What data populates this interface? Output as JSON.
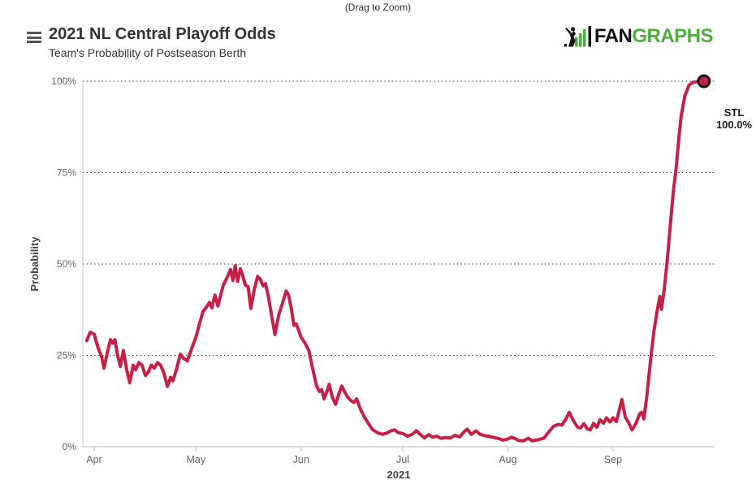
{
  "page": {
    "drag_hint": "(Drag to Zoom)"
  },
  "header": {
    "title": "2021 NL Central Playoff Odds",
    "subtitle": "Team's Probability of Postseason Berth",
    "logo": {
      "fan": "FAN",
      "graphs": "GRAPHS",
      "green": "#4DAE3C",
      "black": "#111111"
    }
  },
  "chart_data": {
    "type": "line",
    "title": "2021 NL Central Playoff Odds",
    "subtitle": "Team's Probability of Postseason Berth",
    "xlabel": "2021",
    "ylabel": "Probability",
    "ylim": [
      0,
      100
    ],
    "grid": "horizontal dotted lines at 25%, 50%, 75%, 100%",
    "legend_position": "none",
    "y_ticks": [
      {
        "label": "0%",
        "value": 0
      },
      {
        "label": "25%",
        "value": 25
      },
      {
        "label": "50%",
        "value": 50
      },
      {
        "label": "75%",
        "value": 75
      },
      {
        "label": "100%",
        "value": 100
      }
    ],
    "x_ticks": [
      {
        "label": "Apr",
        "day": 0
      },
      {
        "label": "May",
        "day": 30
      },
      {
        "label": "Jun",
        "day": 61
      },
      {
        "label": "Jul",
        "day": 91
      },
      {
        "label": "Aug",
        "day": 122
      },
      {
        "label": "Sep",
        "day": 153
      }
    ],
    "x_unit": "days since Apr 1, 2021",
    "series": [
      {
        "name": "STL",
        "color": "#C62046",
        "marker_stroke": "#151515",
        "end_label": {
          "team": "STL",
          "value": "100.0%"
        },
        "points": [
          [
            -2.2,
            29
          ],
          [
            -1.2,
            31.3
          ],
          [
            0,
            30.8
          ],
          [
            1,
            27.5
          ],
          [
            2.2,
            24.5
          ],
          [
            2.9,
            21.5
          ],
          [
            3.8,
            25.5
          ],
          [
            4.8,
            29.3
          ],
          [
            5.5,
            28.3
          ],
          [
            6.1,
            29.3
          ],
          [
            6.9,
            25
          ],
          [
            7.7,
            22
          ],
          [
            8.6,
            26.3
          ],
          [
            9.6,
            21
          ],
          [
            10.5,
            17.5
          ],
          [
            11.5,
            22.3
          ],
          [
            12.2,
            21
          ],
          [
            13.2,
            23
          ],
          [
            14.1,
            22.3
          ],
          [
            15.1,
            19.5
          ],
          [
            16,
            20.5
          ],
          [
            16.8,
            22.3
          ],
          [
            17.7,
            21.5
          ],
          [
            18.7,
            23
          ],
          [
            19.6,
            22.3
          ],
          [
            20.6,
            20
          ],
          [
            21.6,
            16.5
          ],
          [
            22.5,
            19
          ],
          [
            23.2,
            18
          ],
          [
            24.2,
            21
          ],
          [
            25.4,
            25.3
          ],
          [
            26.3,
            24.2
          ],
          [
            27.5,
            23.5
          ],
          [
            29,
            27.5
          ],
          [
            30,
            30
          ],
          [
            31,
            33.5
          ],
          [
            32.1,
            37
          ],
          [
            33.3,
            38.5
          ],
          [
            34,
            39.5
          ],
          [
            34.7,
            38
          ],
          [
            35.6,
            41.5
          ],
          [
            36.5,
            38.5
          ],
          [
            38,
            44
          ],
          [
            39.3,
            46.5
          ],
          [
            40.2,
            48.5
          ],
          [
            40.9,
            45.5
          ],
          [
            41.6,
            49.5
          ],
          [
            42.3,
            45.2
          ],
          [
            43.1,
            48.7
          ],
          [
            43.8,
            46.8
          ],
          [
            44.6,
            44.2
          ],
          [
            45.4,
            43.8
          ],
          [
            46.2,
            37.8
          ],
          [
            47.2,
            43
          ],
          [
            48.2,
            46.6
          ],
          [
            49,
            45.8
          ],
          [
            49.8,
            44
          ],
          [
            50.5,
            44.6
          ],
          [
            51.4,
            41
          ],
          [
            52.2,
            36.5
          ],
          [
            53.3,
            30.7
          ],
          [
            54.4,
            36
          ],
          [
            55.6,
            39.5
          ],
          [
            56.6,
            42.6
          ],
          [
            57.3,
            41.5
          ],
          [
            58.1,
            38
          ],
          [
            58.9,
            33.2
          ],
          [
            59.6,
            33.6
          ],
          [
            61,
            30
          ],
          [
            62.2,
            28.3
          ],
          [
            63.3,
            26.3
          ],
          [
            64.5,
            21
          ],
          [
            65.6,
            16.6
          ],
          [
            66.4,
            15.1
          ],
          [
            67.1,
            15.6
          ],
          [
            67.8,
            13.1
          ],
          [
            68.6,
            15.1
          ],
          [
            69.3,
            17.1
          ],
          [
            70.2,
            13.6
          ],
          [
            71.2,
            11.6
          ],
          [
            72.2,
            14.6
          ],
          [
            73,
            16.6
          ],
          [
            73.8,
            15.1
          ],
          [
            74.7,
            13.6
          ],
          [
            75.7,
            12.6
          ],
          [
            76.6,
            12.1
          ],
          [
            77.4,
            13.1
          ],
          [
            78.6,
            10.1
          ],
          [
            79.7,
            8.1
          ],
          [
            80.7,
            6.6
          ],
          [
            82.1,
            4.7
          ],
          [
            83.6,
            3.8
          ],
          [
            85,
            3.4
          ],
          [
            86.2,
            3.7
          ],
          [
            87.4,
            4.3
          ],
          [
            88.6,
            4.6
          ],
          [
            89.6,
            3.9
          ],
          [
            91,
            3.6
          ],
          [
            92.4,
            2.9
          ],
          [
            93.8,
            3.4
          ],
          [
            95,
            4.4
          ],
          [
            96.2,
            3.3
          ],
          [
            97.4,
            2.4
          ],
          [
            98.6,
            3.3
          ],
          [
            99.8,
            2.6
          ],
          [
            101,
            2.9
          ],
          [
            102.2,
            2.3
          ],
          [
            103.6,
            2.5
          ],
          [
            105,
            2.4
          ],
          [
            106.4,
            3.1
          ],
          [
            107.8,
            2.7
          ],
          [
            109.2,
            4.2
          ],
          [
            110,
            4.8
          ],
          [
            111.2,
            3.4
          ],
          [
            112.6,
            4.3
          ],
          [
            113.8,
            3.4
          ],
          [
            115.2,
            3
          ],
          [
            116.6,
            2.8
          ],
          [
            118,
            2.5
          ],
          [
            119.4,
            2.2
          ],
          [
            120.6,
            1.8
          ],
          [
            122,
            2.1
          ],
          [
            123.1,
            2.6
          ],
          [
            124.4,
            2.1
          ],
          [
            125,
            1.7
          ],
          [
            126.6,
            1.6
          ],
          [
            128,
            2.3
          ],
          [
            129.2,
            1.6
          ],
          [
            130.8,
            1.9
          ],
          [
            132.6,
            2.3
          ],
          [
            134.1,
            4.1
          ],
          [
            135.5,
            5.6
          ],
          [
            137,
            6.1
          ],
          [
            137.9,
            5.9
          ],
          [
            139.1,
            7.6
          ],
          [
            140.1,
            9.4
          ],
          [
            141.3,
            7.1
          ],
          [
            142.5,
            5.4
          ],
          [
            143.4,
            5.1
          ],
          [
            144.4,
            6.3
          ],
          [
            145.4,
            4.9
          ],
          [
            146.3,
            4.6
          ],
          [
            147.3,
            6.4
          ],
          [
            148.2,
            5.3
          ],
          [
            149.2,
            7.4
          ],
          [
            150.2,
            6.4
          ],
          [
            151.1,
            7.9
          ],
          [
            152.1,
            6.8
          ],
          [
            153,
            7.9
          ],
          [
            154,
            6.9
          ],
          [
            155,
            10.6
          ],
          [
            155.6,
            12.9
          ],
          [
            156.6,
            8.1
          ],
          [
            157.6,
            6.6
          ],
          [
            158.6,
            4.6
          ],
          [
            159.8,
            6.4
          ],
          [
            160.8,
            8.9
          ],
          [
            161.4,
            9.4
          ],
          [
            162.1,
            7.6
          ],
          [
            163,
            14.1
          ],
          [
            164,
            23.1
          ],
          [
            165,
            31.1
          ],
          [
            166,
            37.1
          ],
          [
            166.8,
            41.1
          ],
          [
            167.3,
            37.6
          ],
          [
            168.1,
            43.1
          ],
          [
            168.9,
            50.1
          ],
          [
            170,
            61.6
          ],
          [
            170.8,
            70.1
          ],
          [
            171.6,
            76.1
          ],
          [
            172.4,
            84.1
          ],
          [
            173.1,
            90.6
          ],
          [
            174.2,
            96.1
          ],
          [
            175.4,
            98.9
          ],
          [
            176.6,
            99.7
          ],
          [
            178,
            99.9
          ],
          [
            179.8,
            100
          ]
        ]
      }
    ]
  }
}
